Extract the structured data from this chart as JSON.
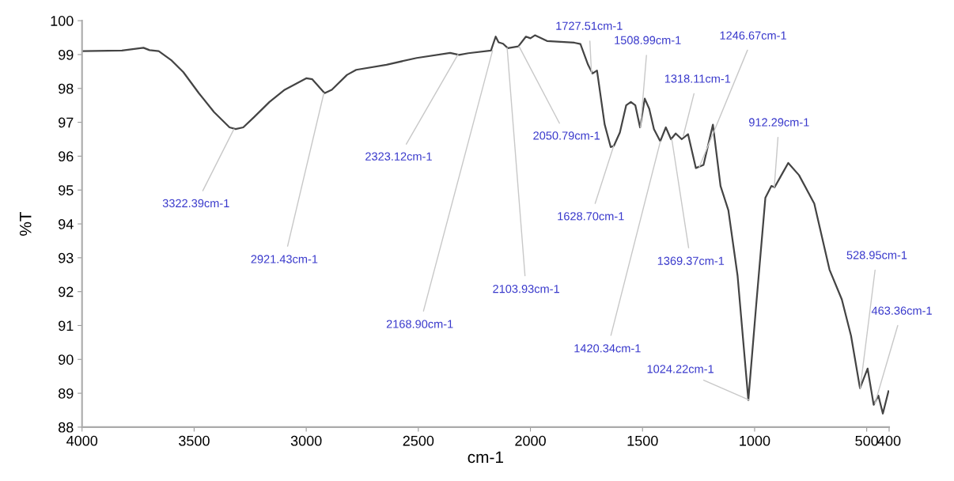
{
  "chart_data": {
    "type": "line",
    "xlabel": "cm-1",
    "ylabel": "%T",
    "xlim": [
      4000,
      400
    ],
    "xticks": [
      4000,
      3500,
      3000,
      2500,
      2000,
      1500,
      1000,
      500,
      400
    ],
    "ylim": [
      88,
      100
    ],
    "yticks": [
      88,
      89,
      90,
      91,
      92,
      93,
      94,
      95,
      96,
      97,
      98,
      99,
      100
    ],
    "grid": false,
    "legend": false,
    "marker": "none",
    "line_style": "solid",
    "series": [
      {
        "color": "#444444",
        "x": [
          4000,
          3822,
          3726,
          3699,
          3658,
          3603,
          3548,
          3479,
          3411,
          3342,
          3315,
          3281,
          3233,
          3164,
          3096,
          3000,
          2973,
          2918,
          2886,
          2818,
          2777,
          2642,
          2507,
          2358,
          2318,
          2277,
          2176,
          2155,
          2142,
          2122,
          2101,
          2054,
          2020,
          2000,
          1980,
          1926,
          1804,
          1777,
          1743,
          1723,
          1703,
          1669,
          1642,
          1628,
          1601,
          1573,
          1552,
          1532,
          1511,
          1490,
          1470,
          1449,
          1421,
          1396,
          1373,
          1352,
          1325,
          1297,
          1262,
          1228,
          1186,
          1152,
          1117,
          1076,
          1028,
          993,
          952,
          925,
          911,
          877,
          850,
          802,
          734,
          666,
          611,
          570,
          530,
          496,
          469,
          448,
          428,
          403
        ],
        "values": [
          99.1,
          99.12,
          99.2,
          99.13,
          99.1,
          98.84,
          98.48,
          97.86,
          97.3,
          96.85,
          96.8,
          96.85,
          97.15,
          97.6,
          97.96,
          98.3,
          98.27,
          97.86,
          97.96,
          98.4,
          98.55,
          98.7,
          98.9,
          99.05,
          98.99,
          99.04,
          99.12,
          99.53,
          99.36,
          99.32,
          99.19,
          99.24,
          99.53,
          99.48,
          99.57,
          99.4,
          99.35,
          99.31,
          98.7,
          98.44,
          98.53,
          96.94,
          96.27,
          96.3,
          96.7,
          97.5,
          97.6,
          97.5,
          96.85,
          97.7,
          97.4,
          96.8,
          96.44,
          96.85,
          96.5,
          96.67,
          96.5,
          96.65,
          95.65,
          95.74,
          96.93,
          95.12,
          94.4,
          92.47,
          88.8,
          91.6,
          94.77,
          95.12,
          95.08,
          95.48,
          95.8,
          95.44,
          94.6,
          92.65,
          91.77,
          90.7,
          89.15,
          89.73,
          88.66,
          88.93,
          88.4,
          89.06
        ]
      }
    ],
    "annotations": [
      {
        "text": "3322.39cm-1",
        "x": 3322.39,
        "y": 96.8
      },
      {
        "text": "2921.43cm-1",
        "x": 2921.43,
        "y": 97.86
      },
      {
        "text": "2323.12cm-1",
        "x": 2323.12,
        "y": 99.0
      },
      {
        "text": "2168.90cm-1",
        "x": 2168.9,
        "y": 99.12
      },
      {
        "text": "2103.93cm-1",
        "x": 2103.93,
        "y": 99.2
      },
      {
        "text": "2050.79cm-1",
        "x": 2050.79,
        "y": 99.24
      },
      {
        "text": "1727.51cm-1",
        "x": 1727.51,
        "y": 98.44
      },
      {
        "text": "1628.70cm-1",
        "x": 1628.7,
        "y": 96.3
      },
      {
        "text": "1508.99cm-1",
        "x": 1508.99,
        "y": 96.85
      },
      {
        "text": "1318.11cm-1",
        "x": 1318.11,
        "y": 96.6
      },
      {
        "text": "1246.67cm-1",
        "x": 1246.67,
        "y": 95.68
      },
      {
        "text": "1369.37cm-1",
        "x": 1369.37,
        "y": 96.5
      },
      {
        "text": "1420.34cm-1",
        "x": 1420.34,
        "y": 96.44
      },
      {
        "text": "1024.22cm-1",
        "x": 1024.22,
        "y": 88.8
      },
      {
        "text": "912.29cm-1",
        "x": 912.29,
        "y": 95.08
      },
      {
        "text": "528.95cm-1",
        "x": 528.95,
        "y": 89.15
      },
      {
        "text": "463.36cm-1",
        "x": 463.36,
        "y": 88.7
      }
    ]
  }
}
